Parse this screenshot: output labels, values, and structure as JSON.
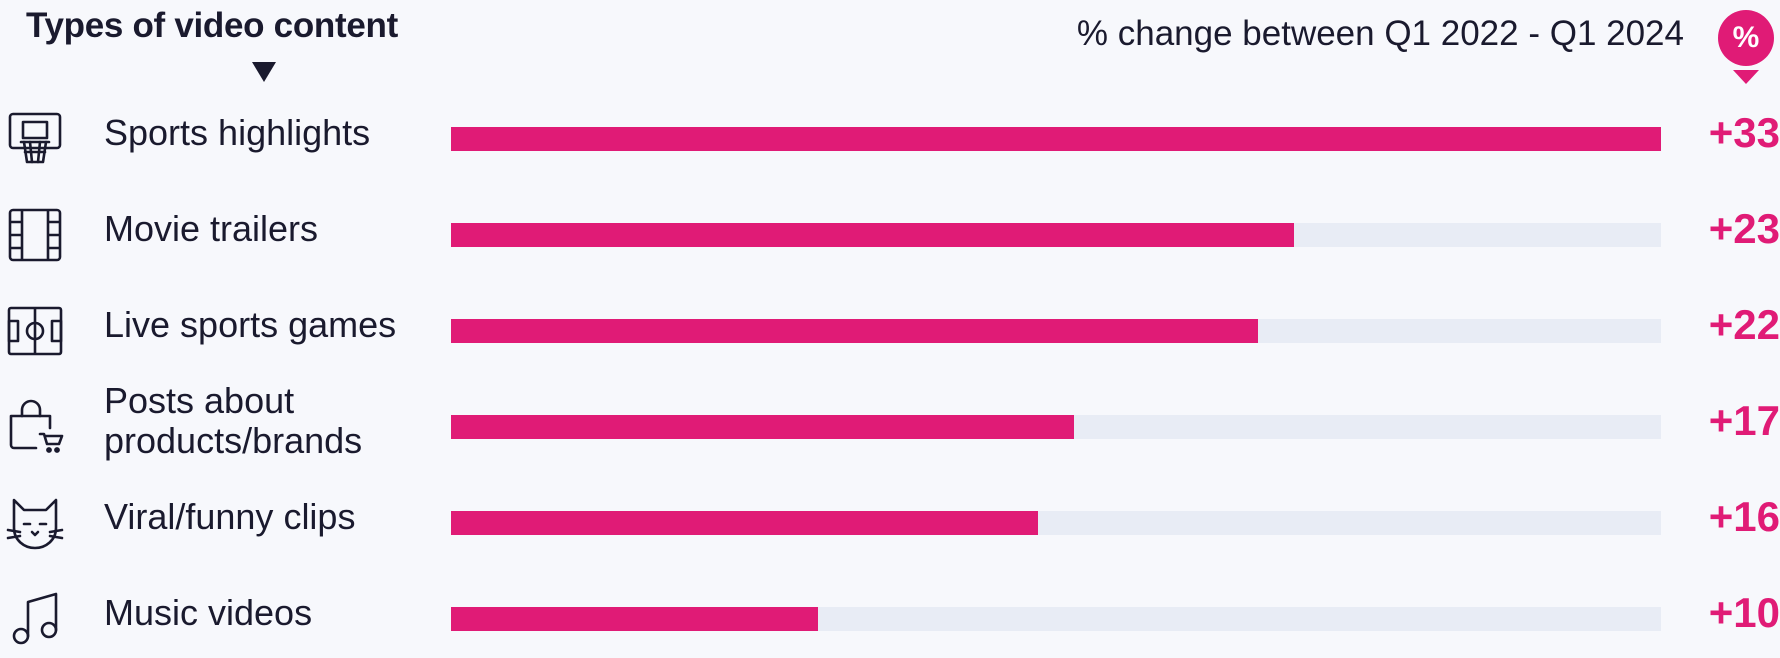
{
  "header": {
    "left_title": "Types of video content",
    "right_title": "% change between Q1 2022 - Q1 2024",
    "badge": "%"
  },
  "colors": {
    "accent": "#e01b76",
    "track": "#e8ecf5",
    "text": "#1a1a2e",
    "background": "#f7f8fc"
  },
  "chart_data": {
    "type": "bar",
    "orientation": "horizontal",
    "title": "Types of video content",
    "subtitle": "% change between Q1 2022 - Q1 2024",
    "categories": [
      "Sports highlights",
      "Movie trailers",
      "Live sports games",
      "Posts about products/brands",
      "Viral/funny clips",
      "Music videos"
    ],
    "values": [
      33,
      23,
      22,
      17,
      16,
      10
    ],
    "value_labels": [
      "+33",
      "+23",
      "+22",
      "+17",
      "+16",
      "+10"
    ],
    "xlim": [
      0,
      33
    ],
    "grid": false,
    "legend": "none"
  },
  "rows": [
    {
      "icon": "basketball-hoop-icon",
      "label": "Sports highlights",
      "value": 33,
      "value_label": "+33"
    },
    {
      "icon": "film-strip-icon",
      "label": "Movie trailers",
      "value": 23,
      "value_label": "+23"
    },
    {
      "icon": "sports-field-icon",
      "label": "Live sports games",
      "value": 22,
      "value_label": "+22"
    },
    {
      "icon": "shopping-bag-cart-icon",
      "label": "Posts about products/brands",
      "value": 17,
      "value_label": "+17"
    },
    {
      "icon": "cat-face-icon",
      "label": "Viral/funny clips",
      "value": 16,
      "value_label": "+16"
    },
    {
      "icon": "music-note-icon",
      "label": "Music videos",
      "value": 10,
      "value_label": "+10"
    }
  ]
}
